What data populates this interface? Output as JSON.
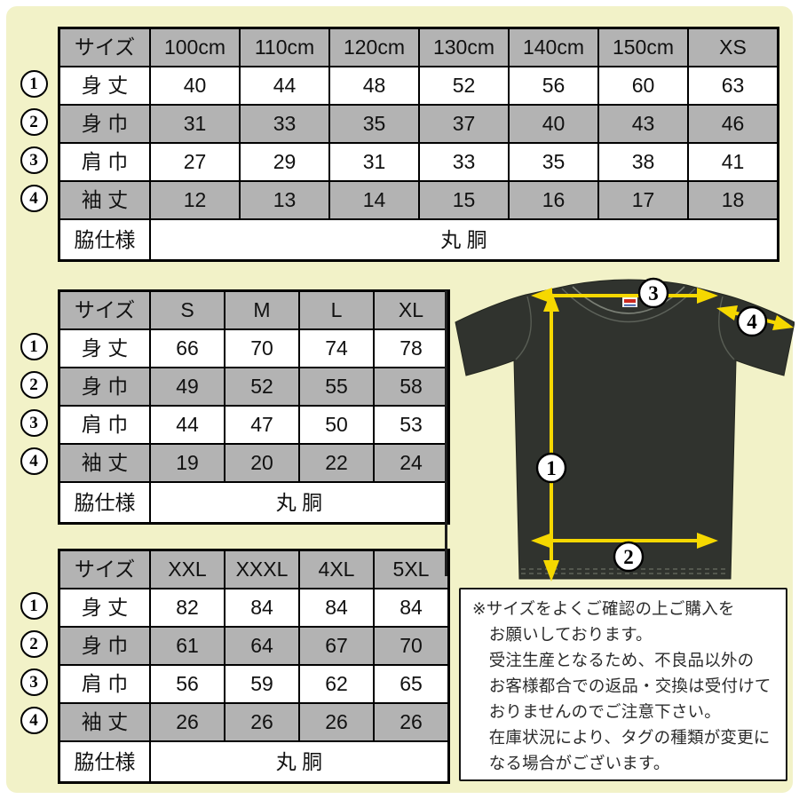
{
  "colors": {
    "background": "#f2f2c8",
    "table_header_gray": "#b3b3b3",
    "arrow_yellow": "#f5d800",
    "shirt_charcoal": "#30332e"
  },
  "row_markers": [
    "1",
    "2",
    "3",
    "4"
  ],
  "tables": {
    "kids": {
      "header": [
        "サイズ",
        "100cm",
        "110cm",
        "120cm",
        "130cm",
        "140cm",
        "150cm",
        "XS"
      ],
      "rows": [
        {
          "label": "身 丈",
          "values": [
            "40",
            "44",
            "48",
            "52",
            "56",
            "60",
            "63"
          ]
        },
        {
          "label": "身 巾",
          "values": [
            "31",
            "33",
            "35",
            "37",
            "40",
            "43",
            "46"
          ]
        },
        {
          "label": "肩 巾",
          "values": [
            "27",
            "29",
            "31",
            "33",
            "35",
            "38",
            "41"
          ]
        },
        {
          "label": "袖 丈",
          "values": [
            "12",
            "13",
            "14",
            "15",
            "16",
            "17",
            "18"
          ]
        }
      ],
      "footer": {
        "label": "脇仕様",
        "value": "丸 胴"
      }
    },
    "adult": {
      "header": [
        "サイズ",
        "S",
        "M",
        "L",
        "XL"
      ],
      "rows": [
        {
          "label": "身 丈",
          "values": [
            "66",
            "70",
            "74",
            "78"
          ]
        },
        {
          "label": "身 巾",
          "values": [
            "49",
            "52",
            "55",
            "58"
          ]
        },
        {
          "label": "肩 巾",
          "values": [
            "44",
            "47",
            "50",
            "53"
          ]
        },
        {
          "label": "袖 丈",
          "values": [
            "19",
            "20",
            "22",
            "24"
          ]
        }
      ],
      "footer": {
        "label": "脇仕様",
        "value": "丸 胴"
      }
    },
    "big": {
      "header": [
        "サイズ",
        "XXL",
        "XXXL",
        "4XL",
        "5XL"
      ],
      "rows": [
        {
          "label": "身 丈",
          "values": [
            "82",
            "84",
            "84",
            "84"
          ]
        },
        {
          "label": "身 巾",
          "values": [
            "61",
            "64",
            "67",
            "70"
          ]
        },
        {
          "label": "肩 巾",
          "values": [
            "56",
            "59",
            "62",
            "65"
          ]
        },
        {
          "label": "袖 丈",
          "values": [
            "26",
            "26",
            "26",
            "26"
          ]
        }
      ],
      "footer": {
        "label": "脇仕様",
        "value": "丸 胴"
      }
    }
  },
  "diagram": {
    "markers": [
      "1",
      "2",
      "3",
      "4"
    ]
  },
  "note": {
    "lines": [
      "※サイズをよくご確認の上ご購入を",
      "　お願いしております。",
      "　受注生産となるため、不良品以外の",
      "　お客様都合での返品・交換は受付けて",
      "　おりませんのでご注意下さい。",
      "　在庫状況により、タグの種類が変更に",
      "　なる場合がございます。"
    ]
  }
}
